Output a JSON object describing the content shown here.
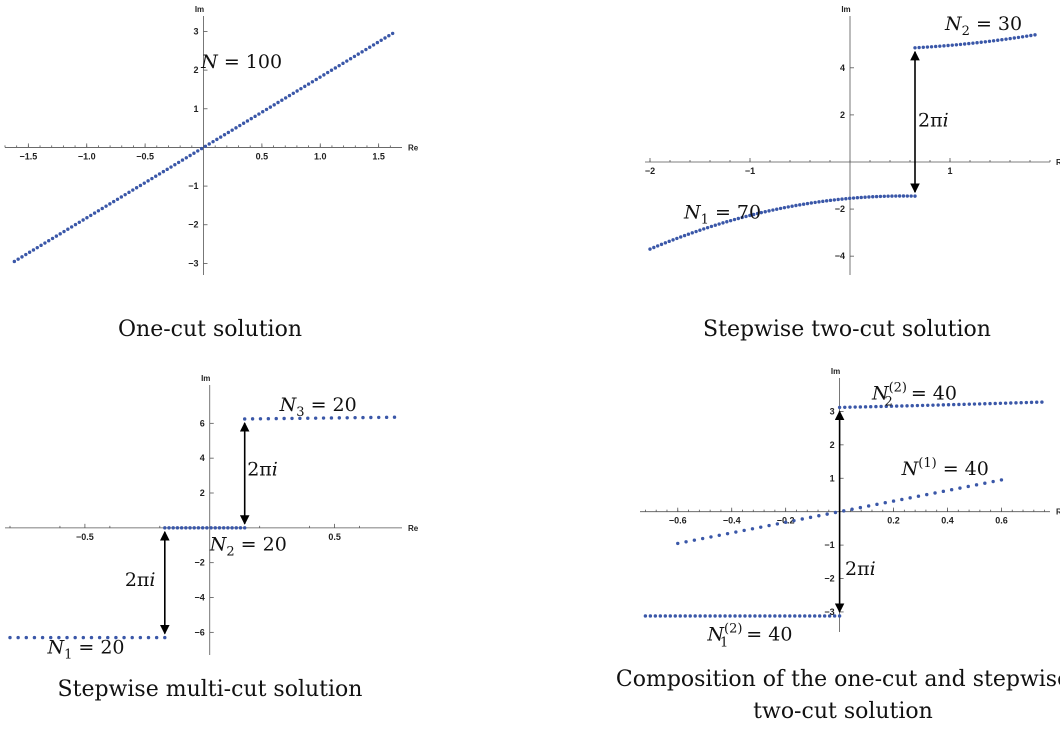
{
  "colors": {
    "points": "#3a57a8",
    "axis": "#555555",
    "arrow": "#000000"
  },
  "chart_data": [
    {
      "type": "scatter",
      "title": "",
      "caption": "One-cut solution",
      "xlabel": "Re",
      "ylabel": "Im",
      "xlim": [
        -1.7,
        1.7
      ],
      "ylim": [
        -3.3,
        3.4
      ],
      "xticks": [
        -1.5,
        -1.0,
        -0.5,
        0.5,
        1.0,
        1.5
      ],
      "xtick_labels": [
        "−1.5",
        "−1.0",
        "−0.5",
        "0.5",
        "1.0",
        "1.5"
      ],
      "yticks": [
        -3,
        -2,
        -1,
        1,
        2,
        3
      ],
      "ytick_labels": [
        "−3",
        "−2",
        "−1",
        "1",
        "2",
        "3"
      ],
      "series": [
        {
          "from": [
            -1.62,
            -2.95
          ],
          "to": [
            1.62,
            2.95
          ],
          "count": 100,
          "bend": 0
        }
      ],
      "annotations": [
        {
          "text": "N = 100",
          "main": "N",
          "sup": "",
          "sub": "",
          "rest": " = 100",
          "at": [
            -0.02,
            2.05
          ]
        }
      ],
      "arrows": []
    },
    {
      "type": "scatter",
      "title": "",
      "caption": "Stepwise two-cut solution",
      "xlabel": "Re",
      "ylabel": "Im",
      "xlim": [
        -2.05,
        2.0
      ],
      "ylim": [
        -4.8,
        6.2
      ],
      "xticks": [
        -2,
        -1,
        1
      ],
      "xtick_labels": [
        "−2",
        "−1",
        "1"
      ],
      "yticks": [
        -4,
        -2,
        2,
        4
      ],
      "ytick_labels": [
        "−4",
        "−2",
        "2",
        "4"
      ],
      "series": [
        {
          "from": [
            -2.0,
            -3.7
          ],
          "to": [
            0.65,
            -1.45
          ],
          "count": 70,
          "bend": 0.55
        },
        {
          "from": [
            0.65,
            4.85
          ],
          "to": [
            1.85,
            5.4
          ],
          "count": 30,
          "bend": -0.25
        }
      ],
      "annotations": [
        {
          "text": "N_1 = 70",
          "main": "N",
          "sup": "",
          "sub": "1",
          "rest": " = 70",
          "at": [
            -1.66,
            -2.4
          ]
        },
        {
          "text": "N_2 = 30",
          "main": "N",
          "sup": "",
          "sub": "2",
          "rest": " = 30",
          "at": [
            0.95,
            5.6
          ]
        },
        {
          "text": "2πi",
          "main": "",
          "sup": "",
          "sub": "",
          "rest": "2πi",
          "at": [
            0.68,
            1.5
          ]
        }
      ],
      "arrows": [
        {
          "x": 0.65,
          "y1": -1.45,
          "y2": 4.85
        }
      ]
    },
    {
      "type": "scatter",
      "title": "",
      "caption": "Stepwise multi-cut solution",
      "xlabel": "Re",
      "ylabel": "Im",
      "xlim": [
        -0.82,
        0.77
      ],
      "ylim": [
        -7.3,
        8.2
      ],
      "xticks": [
        -0.5,
        0.5
      ],
      "xtick_labels": [
        "−0.5",
        "0.5"
      ],
      "yticks": [
        -6,
        -4,
        -2,
        2,
        4,
        6
      ],
      "ytick_labels": [
        "−6",
        "−4",
        "−2",
        "2",
        "4",
        "6"
      ],
      "series": [
        {
          "from": [
            -0.8,
            -6.3
          ],
          "to": [
            -0.18,
            -6.3
          ],
          "count": 20,
          "bend": 0
        },
        {
          "from": [
            -0.18,
            0
          ],
          "to": [
            0.14,
            0
          ],
          "count": 20,
          "bend": 0
        },
        {
          "from": [
            0.14,
            6.25
          ],
          "to": [
            0.74,
            6.35
          ],
          "count": 20,
          "bend": 0
        }
      ],
      "annotations": [
        {
          "text": "N_1 = 20",
          "main": "N",
          "sup": "",
          "sub": "1",
          "rest": " = 20",
          "at": [
            -0.65,
            -7.2
          ]
        },
        {
          "text": "N_2 = 20",
          "main": "N",
          "sup": "",
          "sub": "2",
          "rest": " = 20",
          "at": [
            0.0,
            -1.3
          ]
        },
        {
          "text": "N_3 = 20",
          "main": "N",
          "sup": "",
          "sub": "3",
          "rest": " = 20",
          "at": [
            0.28,
            6.7
          ]
        },
        {
          "text": "2πi",
          "main": "",
          "sup": "",
          "sub": "",
          "rest": "2πi",
          "at": [
            0.15,
            3.0
          ]
        },
        {
          "text": "2πi",
          "main": "",
          "sup": "",
          "sub": "",
          "rest": "2πi",
          "at": [
            -0.34,
            -3.35
          ]
        }
      ],
      "arrows": [
        {
          "x": 0.14,
          "y1": 0,
          "y2": 6.25
        },
        {
          "x": -0.18,
          "y1": 0,
          "y2": -6.3
        }
      ]
    },
    {
      "type": "scatter",
      "title": "",
      "caption": "Composition of the one-cut and stepwise two-cut solution",
      "caption_lines": [
        "Composition of the one-cut and stepwise",
        "two-cut solution"
      ],
      "xlabel": "Re",
      "ylabel": "Im",
      "xlim": [
        -0.74,
        0.78
      ],
      "ylim": [
        -3.6,
        4.0
      ],
      "xticks": [
        -0.6,
        -0.4,
        -0.2,
        0.2,
        0.4,
        0.6
      ],
      "xtick_labels": [
        "−0.6",
        "−0.4",
        "−0.2",
        "0.2",
        "0.4",
        "0.6"
      ],
      "yticks": [
        -3,
        -2,
        -1,
        1,
        2,
        3
      ],
      "ytick_labels": [
        "−3",
        "−2",
        "−1",
        "1",
        "2",
        "3"
      ],
      "series": [
        {
          "from": [
            -0.72,
            -3.12
          ],
          "to": [
            0.0,
            -3.12
          ],
          "count": 40,
          "bend": 0.08
        },
        {
          "from": [
            0.0,
            3.12
          ],
          "to": [
            0.75,
            3.28
          ],
          "count": 40,
          "bend": -0.08
        },
        {
          "from": [
            -0.6,
            -0.95
          ],
          "to": [
            0.6,
            0.95
          ],
          "count": 40,
          "bend": 0
        }
      ],
      "annotations": [
        {
          "text": "N_1^(2) = 40",
          "main": "N",
          "sup": "(2)",
          "sub": "1",
          "rest": " = 40",
          "at": [
            -0.49,
            -3.85
          ]
        },
        {
          "text": "N_2^(2) = 40",
          "main": "N",
          "sup": "(2)",
          "sub": "2",
          "rest": " = 40",
          "at": [
            0.12,
            3.35
          ]
        },
        {
          "text": "N^(1) = 40",
          "main": "N",
          "sup": "(1)",
          "sub": "",
          "rest": " = 40",
          "at": [
            0.23,
            1.1
          ]
        },
        {
          "text": "2πi",
          "main": "",
          "sup": "",
          "sub": "",
          "rest": "2πi",
          "at": [
            0.02,
            -1.9
          ]
        }
      ],
      "arrows": [
        {
          "x": 0.0,
          "y1": 3.12,
          "y2": -3.12
        }
      ]
    }
  ]
}
